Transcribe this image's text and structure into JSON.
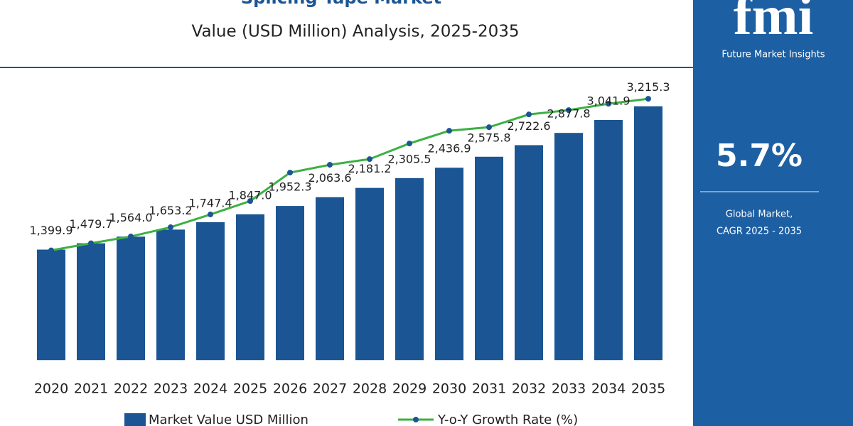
{
  "chart_data": {
    "type": "bar",
    "title": "Splicing Tape Market",
    "subtitle": "Value (USD Million) Analysis, 2025-2035",
    "categories": [
      "2020",
      "2021",
      "2022",
      "2023",
      "2024",
      "2025",
      "2026",
      "2027",
      "2028",
      "2029",
      "2030",
      "2031",
      "2032",
      "2033",
      "2034",
      "2035"
    ],
    "series": [
      {
        "name": "Market Value USD Million",
        "type": "bar",
        "color": "#1b5594",
        "values": [
          1399.9,
          1479.7,
          1564.0,
          1653.2,
          1747.4,
          1847.0,
          1952.3,
          2063.6,
          2181.2,
          2305.5,
          2436.9,
          2575.8,
          2722.6,
          2877.8,
          3041.9,
          3215.3
        ],
        "value_labels": [
          "1,399.9",
          "1,479.7",
          "1,564.0",
          "1,653.2",
          "1,747.4",
          "1,847.0",
          "1,952.3",
          "2,063.6",
          "2,181.2",
          "2,305.5",
          "2,436.9",
          "2,575.8",
          "2,722.6",
          "2,877.8",
          "3,041.9",
          "3,215.3"
        ]
      },
      {
        "name": "Y-o-Y Growth Rate (%)",
        "type": "line",
        "color": "#3cb043",
        "values": [
          1390,
          1480,
          1566,
          1683,
          1845,
          2015,
          2375,
          2474,
          2546,
          2744,
          2905,
          2950,
          3112,
          3166,
          3247,
          3310
        ]
      }
    ],
    "ylim": [
      -250,
      3500
    ]
  },
  "sidebar": {
    "logo": "fmi",
    "brand": "Future Market Insights",
    "cagr": "5.7%",
    "caption_line1": "Global Market,",
    "caption_line2": "CAGR 2025 - 2035"
  }
}
